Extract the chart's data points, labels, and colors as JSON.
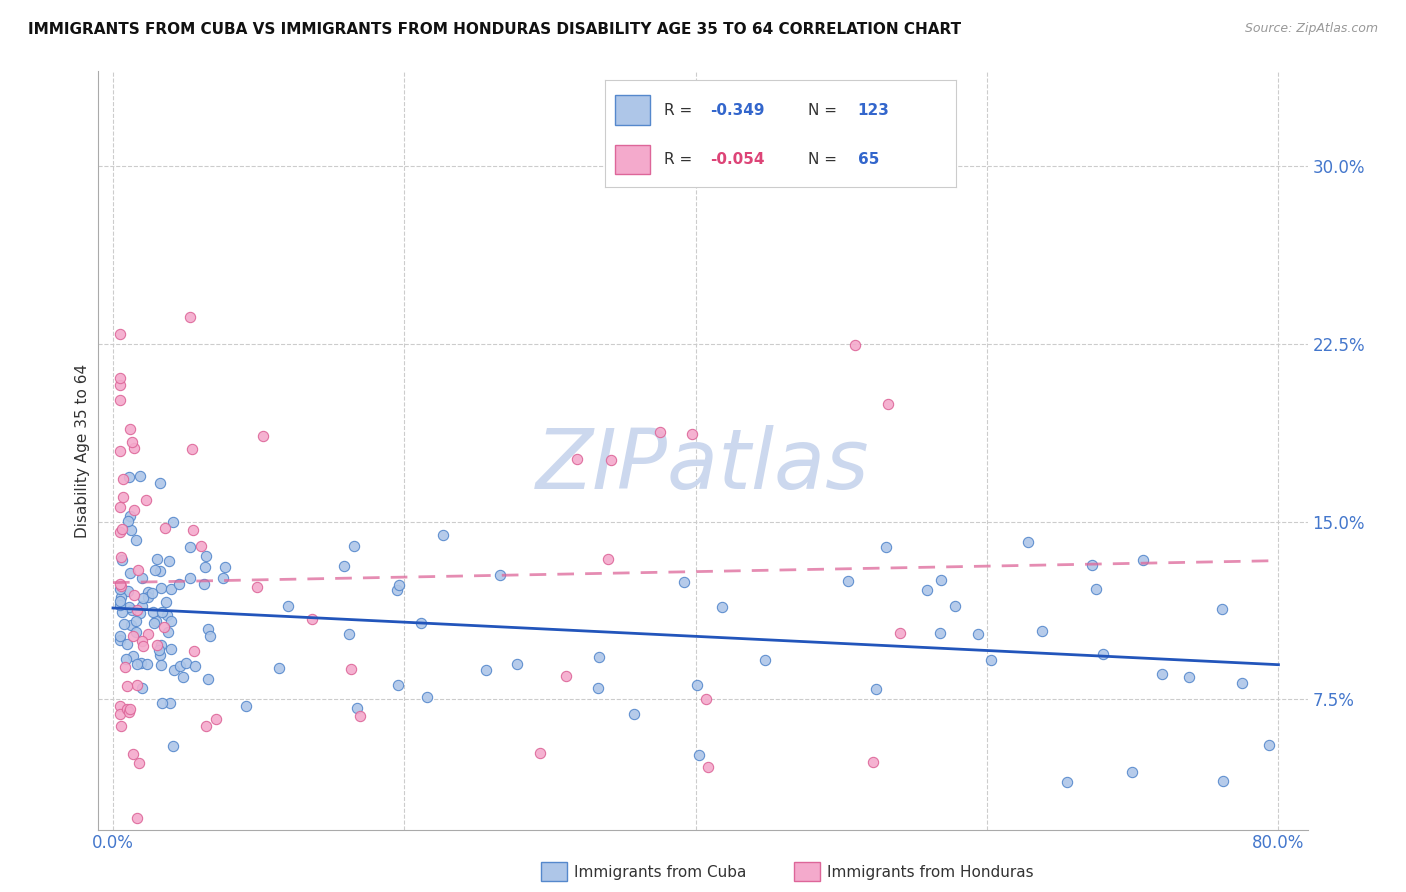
{
  "title": "IMMIGRANTS FROM CUBA VS IMMIGRANTS FROM HONDURAS DISABILITY AGE 35 TO 64 CORRELATION CHART",
  "source": "Source: ZipAtlas.com",
  "ylabel": "Disability Age 35 to 64",
  "ytick_labels": [
    "7.5%",
    "15.0%",
    "22.5%",
    "30.0%"
  ],
  "ytick_vals": [
    0.075,
    0.15,
    0.225,
    0.3
  ],
  "xtick_labels": [
    "0.0%",
    "80.0%"
  ],
  "xtick_vals": [
    0.0,
    0.8
  ],
  "xlim": [
    -0.01,
    0.82
  ],
  "ylim": [
    0.02,
    0.34
  ],
  "cuba_face_color": "#aec6e8",
  "cuba_edge_color": "#5588cc",
  "honduras_face_color": "#f4aacc",
  "honduras_edge_color": "#dd6699",
  "cuba_line_color": "#2255bb",
  "honduras_line_color": "#dd6699",
  "cuba_R": -0.349,
  "cuba_N": 123,
  "honduras_R": -0.054,
  "honduras_N": 65,
  "legend_label_cuba": "Immigrants from Cuba",
  "legend_label_honduras": "Immigrants from Honduras",
  "grid_color": "#cccccc",
  "watermark_color": "#ccd8ee",
  "background_color": "#ffffff"
}
